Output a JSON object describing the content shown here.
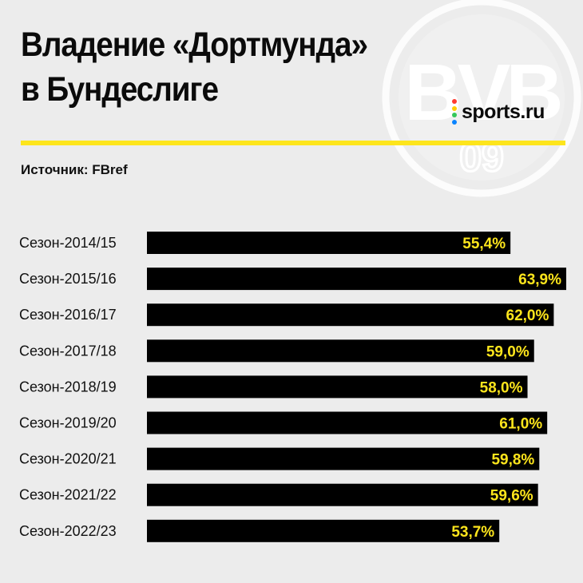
{
  "title": {
    "line1": "Владение «Дортмунда»",
    "line2": "в Бундеслиге"
  },
  "source": "Источник: FBref",
  "brand": {
    "name": "sports.ru",
    "dot_colors": [
      "#ff3b30",
      "#ffcc00",
      "#34c759",
      "#0a84ff"
    ]
  },
  "watermark": {
    "letters_top": "BVB",
    "number": "09"
  },
  "colors": {
    "background": "#ececec",
    "accent": "#fde51c",
    "bar": "#000000",
    "value_text": "#fde51c"
  },
  "chart_data": {
    "type": "bar",
    "orientation": "horizontal",
    "title": "Владение «Дортмунда» в Бундеслиге",
    "categories": [
      "Сезон-2014/15",
      "Сезон-2015/16",
      "Сезон-2016/17",
      "Сезон-2017/18",
      "Сезон-2018/19",
      "Сезон-2019/20",
      "Сезон-2020/21",
      "Сезон-2021/22",
      "Сезон-2022/23"
    ],
    "values": [
      55.4,
      63.9,
      62.0,
      59.0,
      58.0,
      61.0,
      59.8,
      59.6,
      53.7
    ],
    "value_labels": [
      "55,4%",
      "63,9%",
      "62,0%",
      "59,0%",
      "58,0%",
      "61,0%",
      "59,8%",
      "59,6%",
      "53,7%"
    ],
    "xlim": [
      0,
      63.9
    ],
    "grid": false,
    "legend": "none"
  }
}
